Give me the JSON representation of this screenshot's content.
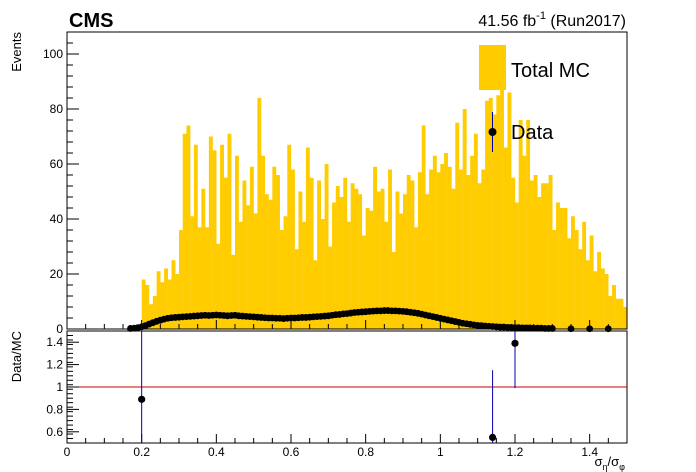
{
  "header": {
    "experiment": "CMS",
    "lumi_value": "41.56 fb",
    "lumi_exp": "-1",
    "lumi_run": " (Run2017)"
  },
  "legend": {
    "mc_label": "Total MC",
    "data_label": "Data"
  },
  "colors": {
    "mc_fill": "#ffcc00",
    "data_marker": "#000000",
    "error_bar": "#0000aa",
    "ratio_line": "#cc0000"
  },
  "chart_data": [
    {
      "type": "bar",
      "title": "",
      "ylabel": "Events",
      "xlim": [
        0,
        1.5
      ],
      "ylim": [
        0,
        108
      ],
      "yticks": [
        0,
        20,
        40,
        60,
        80,
        100
      ],
      "bin_width": 0.01,
      "series": [
        {
          "name": "Total MC",
          "x_start": 0.2,
          "values": [
            18,
            16,
            9,
            12,
            21,
            17,
            22,
            18,
            25,
            20,
            36,
            71,
            74,
            41,
            67,
            37,
            51,
            37,
            70,
            65,
            31,
            67,
            55,
            71,
            27,
            63,
            39,
            54,
            45,
            59,
            42,
            84,
            63,
            49,
            47,
            59,
            56,
            36,
            41,
            67,
            58,
            29,
            50,
            39,
            66,
            55,
            25,
            54,
            40,
            60,
            30,
            46,
            52,
            48,
            55,
            39,
            53,
            51,
            49,
            34,
            44,
            43,
            59,
            50,
            51,
            39,
            58,
            28,
            50,
            42,
            49,
            56,
            54,
            37,
            57,
            74,
            49,
            58,
            63,
            57,
            60,
            64,
            59,
            51,
            75,
            58,
            80,
            56,
            63,
            71,
            53,
            58,
            83,
            84,
            78,
            85,
            100,
            66,
            86,
            55,
            46,
            76,
            63,
            76,
            54,
            56,
            48,
            53,
            53,
            56,
            36,
            46,
            44,
            44,
            33,
            41,
            36,
            29,
            39,
            25,
            34,
            21,
            28,
            22,
            20,
            12,
            16,
            11,
            11,
            8
          ]
        },
        {
          "name": "Data",
          "x": [
            0.17,
            0.18,
            0.19,
            0.2,
            0.21,
            0.22,
            0.23,
            0.24,
            0.25,
            0.26,
            0.27,
            0.28,
            0.29,
            0.3,
            0.31,
            0.32,
            0.33,
            0.34,
            0.35,
            0.36,
            0.37,
            0.38,
            0.39,
            0.4,
            0.41,
            0.42,
            0.43,
            0.44,
            0.45,
            0.46,
            0.47,
            0.48,
            0.49,
            0.5,
            0.51,
            0.52,
            0.53,
            0.54,
            0.55,
            0.56,
            0.57,
            0.58,
            0.59,
            0.6,
            0.61,
            0.62,
            0.63,
            0.64,
            0.65,
            0.66,
            0.67,
            0.68,
            0.69,
            0.7,
            0.71,
            0.72,
            0.73,
            0.74,
            0.75,
            0.76,
            0.77,
            0.78,
            0.79,
            0.8,
            0.81,
            0.82,
            0.83,
            0.84,
            0.85,
            0.86,
            0.87,
            0.88,
            0.89,
            0.9,
            0.91,
            0.92,
            0.93,
            0.94,
            0.95,
            0.96,
            0.97,
            0.98,
            0.99,
            1.0,
            1.01,
            1.02,
            1.03,
            1.04,
            1.05,
            1.06,
            1.07,
            1.08,
            1.09,
            1.1,
            1.11,
            1.12,
            1.13,
            1.14,
            1.15,
            1.16,
            1.17,
            1.18,
            1.19,
            1.2,
            1.21,
            1.22,
            1.23,
            1.24,
            1.25,
            1.26,
            1.27,
            1.28,
            1.29,
            1.3,
            1.35,
            1.4,
            1.45
          ],
          "values": [
            0.2,
            0.3,
            0.5,
            0.8,
            1.2,
            1.8,
            2.3,
            2.8,
            3.2,
            3.6,
            3.9,
            4.1,
            4.2,
            4.3,
            4.4,
            4.5,
            4.6,
            4.7,
            4.8,
            4.9,
            5.0,
            4.9,
            5.0,
            5.1,
            5.0,
            4.9,
            4.8,
            4.9,
            5.0,
            4.8,
            4.7,
            4.6,
            4.5,
            4.4,
            4.3,
            4.2,
            4.1,
            4.0,
            4.0,
            3.9,
            3.9,
            3.8,
            3.9,
            4.0,
            4.0,
            4.1,
            4.2,
            4.2,
            4.3,
            4.4,
            4.5,
            4.6,
            4.7,
            4.8,
            5.0,
            5.2,
            5.3,
            5.5,
            5.6,
            5.8,
            6.0,
            6.1,
            6.2,
            6.3,
            6.4,
            6.5,
            6.6,
            6.6,
            6.7,
            6.7,
            6.6,
            6.6,
            6.5,
            6.4,
            6.3,
            6.1,
            5.9,
            5.7,
            5.4,
            5.1,
            4.8,
            4.5,
            4.2,
            3.9,
            3.6,
            3.3,
            3.0,
            2.7,
            2.4,
            2.1,
            1.9,
            1.7,
            1.5,
            1.3,
            1.2,
            1.1,
            1.0,
            0.9,
            0.8,
            0.7,
            0.7,
            0.6,
            0.6,
            0.5,
            0.5,
            0.4,
            0.4,
            0.4,
            0.3,
            0.3,
            0.3,
            0.2,
            0.2,
            0.2,
            0.1,
            0.1,
            0.1
          ]
        }
      ]
    },
    {
      "type": "scatter",
      "ylabel": "Data/MC",
      "xlabel": "σ_η/σ_φ",
      "xlim": [
        0,
        1.5
      ],
      "ylim": [
        0.5,
        1.5
      ],
      "xticks": [
        0,
        0.2,
        0.4,
        0.6,
        0.8,
        1,
        1.2,
        1.4
      ],
      "yticks": [
        0.6,
        0.8,
        1,
        1.2,
        1.4
      ],
      "reference_line": 1,
      "series": [
        {
          "name": "Data/MC",
          "x": [
            0.2,
            1.14,
            1.2
          ],
          "values": [
            0.89,
            0.55,
            1.39
          ],
          "err_low": [
            0.4,
            0.6,
            0.4
          ],
          "err_high": [
            0.7,
            0.6,
            0.7
          ]
        }
      ]
    }
  ]
}
